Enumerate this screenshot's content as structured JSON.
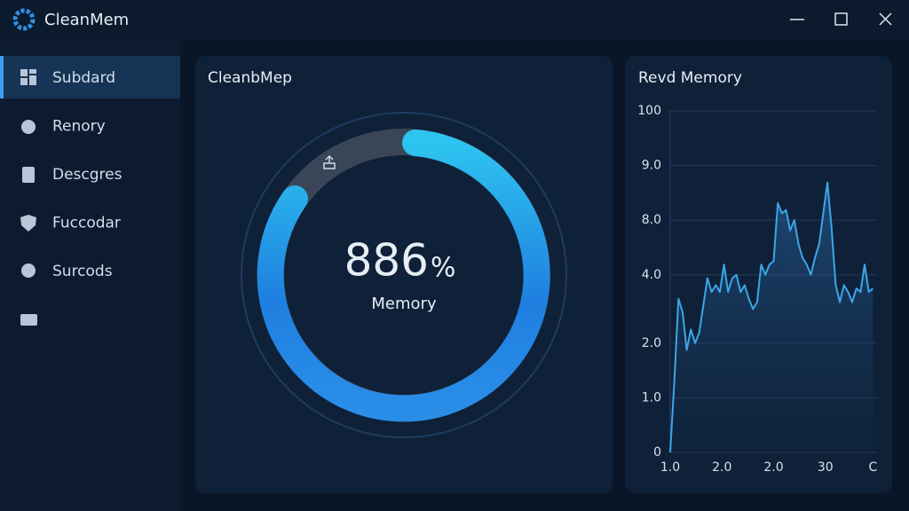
{
  "app": {
    "title": "CleanMem"
  },
  "sidebar": {
    "items": [
      "Subdard",
      "Renory",
      "Descgres",
      "Fuccodar",
      "Surcods"
    ]
  },
  "gauge_panel": {
    "title": "CleanbMep",
    "value_text": "886",
    "unit_text": "%",
    "caption": "Memory"
  },
  "chart_data": {
    "type": "line",
    "title": "Revd Memory",
    "color": "#3ba6e8",
    "grid": true,
    "xlim": [
      0,
      100
    ],
    "ylim": [
      0,
      100
    ],
    "xticks": [
      {
        "value": 0,
        "label": "1.0"
      },
      {
        "value": 25,
        "label": "2.0"
      },
      {
        "value": 50,
        "label": "2.0"
      },
      {
        "value": 75,
        "label": "30"
      },
      {
        "value": 98,
        "label": "C"
      }
    ],
    "yticks": [
      0,
      {
        "value": 16,
        "label": "1.0"
      },
      {
        "value": 32,
        "label": "2.0"
      },
      {
        "value": 52,
        "label": "4.0"
      },
      {
        "value": 68,
        "label": "8.0"
      },
      {
        "value": 84,
        "label": "9.0"
      },
      100
    ],
    "x": [
      0,
      2,
      4,
      6,
      8,
      10,
      12,
      14,
      16,
      18,
      20,
      22,
      24,
      26,
      28,
      30,
      32,
      34,
      36,
      38,
      40,
      42,
      44,
      46,
      48,
      50,
      52,
      54,
      56,
      58,
      60,
      62,
      64,
      66,
      68,
      70,
      72,
      74,
      76,
      78,
      80,
      82,
      84,
      86,
      88,
      90,
      92,
      94,
      96,
      98
    ],
    "values": [
      0,
      21,
      45,
      41,
      30,
      36,
      32,
      35,
      43,
      51,
      47,
      49,
      47,
      55,
      47,
      51,
      52,
      47,
      49,
      45,
      42,
      44,
      55,
      52,
      55,
      56,
      73,
      70,
      71,
      65,
      68,
      61,
      57,
      55,
      52,
      57,
      61,
      70,
      79,
      66,
      49,
      44,
      49,
      47,
      44,
      48,
      47,
      55,
      47,
      48
    ]
  }
}
